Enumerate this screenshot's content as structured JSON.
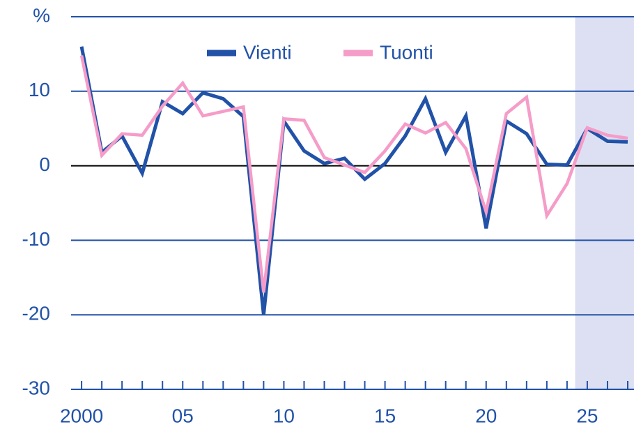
{
  "chart_data": {
    "type": "line",
    "x": [
      2000,
      2001,
      2002,
      2003,
      2004,
      2005,
      2006,
      2007,
      2008,
      2009,
      2010,
      2011,
      2012,
      2013,
      2014,
      2015,
      2016,
      2017,
      2018,
      2019,
      2020,
      2021,
      2022,
      2023,
      2024,
      2025,
      2026,
      2027
    ],
    "series": [
      {
        "name": "Vienti",
        "color": "#2152a8",
        "values": [
          16,
          1.8,
          4,
          -1,
          8.6,
          7,
          9.8,
          9,
          6.6,
          -20,
          6,
          2,
          0.3,
          1,
          -1.8,
          0.3,
          4,
          9,
          1.8,
          6.7,
          -8.4,
          6,
          4.3,
          0.2,
          0.1,
          5,
          3.3,
          3.2
        ]
      },
      {
        "name": "Tuonti",
        "color": "#f59cc8",
        "values": [
          14.8,
          1.4,
          4.3,
          4.1,
          8,
          11.1,
          6.7,
          7.3,
          7.9,
          -17,
          6.3,
          6.1,
          1.1,
          0.1,
          -0.9,
          2,
          5.6,
          4.4,
          5.8,
          2.3,
          -6.2,
          7,
          9.2,
          -6.7,
          -2.4,
          5.1,
          4.1,
          3.7
        ]
      }
    ],
    "xlim": [
      1999.48,
      2027.31
    ],
    "xticks": [
      2000,
      {
        "value": 2005,
        "label": "05"
      },
      {
        "value": 2010,
        "label": "10"
      },
      {
        "value": 2015,
        "label": "15"
      },
      {
        "value": 2020,
        "label": "20"
      },
      {
        "value": 2025,
        "label": "25"
      }
    ],
    "xminorticks": [
      2001,
      2002,
      2003,
      2004,
      2006,
      2007,
      2008,
      2009,
      2011,
      2012,
      2013,
      2014,
      2016,
      2017,
      2018,
      2019,
      2021,
      2022,
      2023,
      2024,
      2026,
      2027
    ],
    "ylim": [
      -30,
      20
    ],
    "yticks": [
      -30,
      -20,
      -10,
      0,
      10,
      {
        "value": 20,
        "label": "%"
      }
    ],
    "shade_from": 2024.4,
    "shade_color": "#dde0f2",
    "grid": true,
    "legend": "top"
  }
}
